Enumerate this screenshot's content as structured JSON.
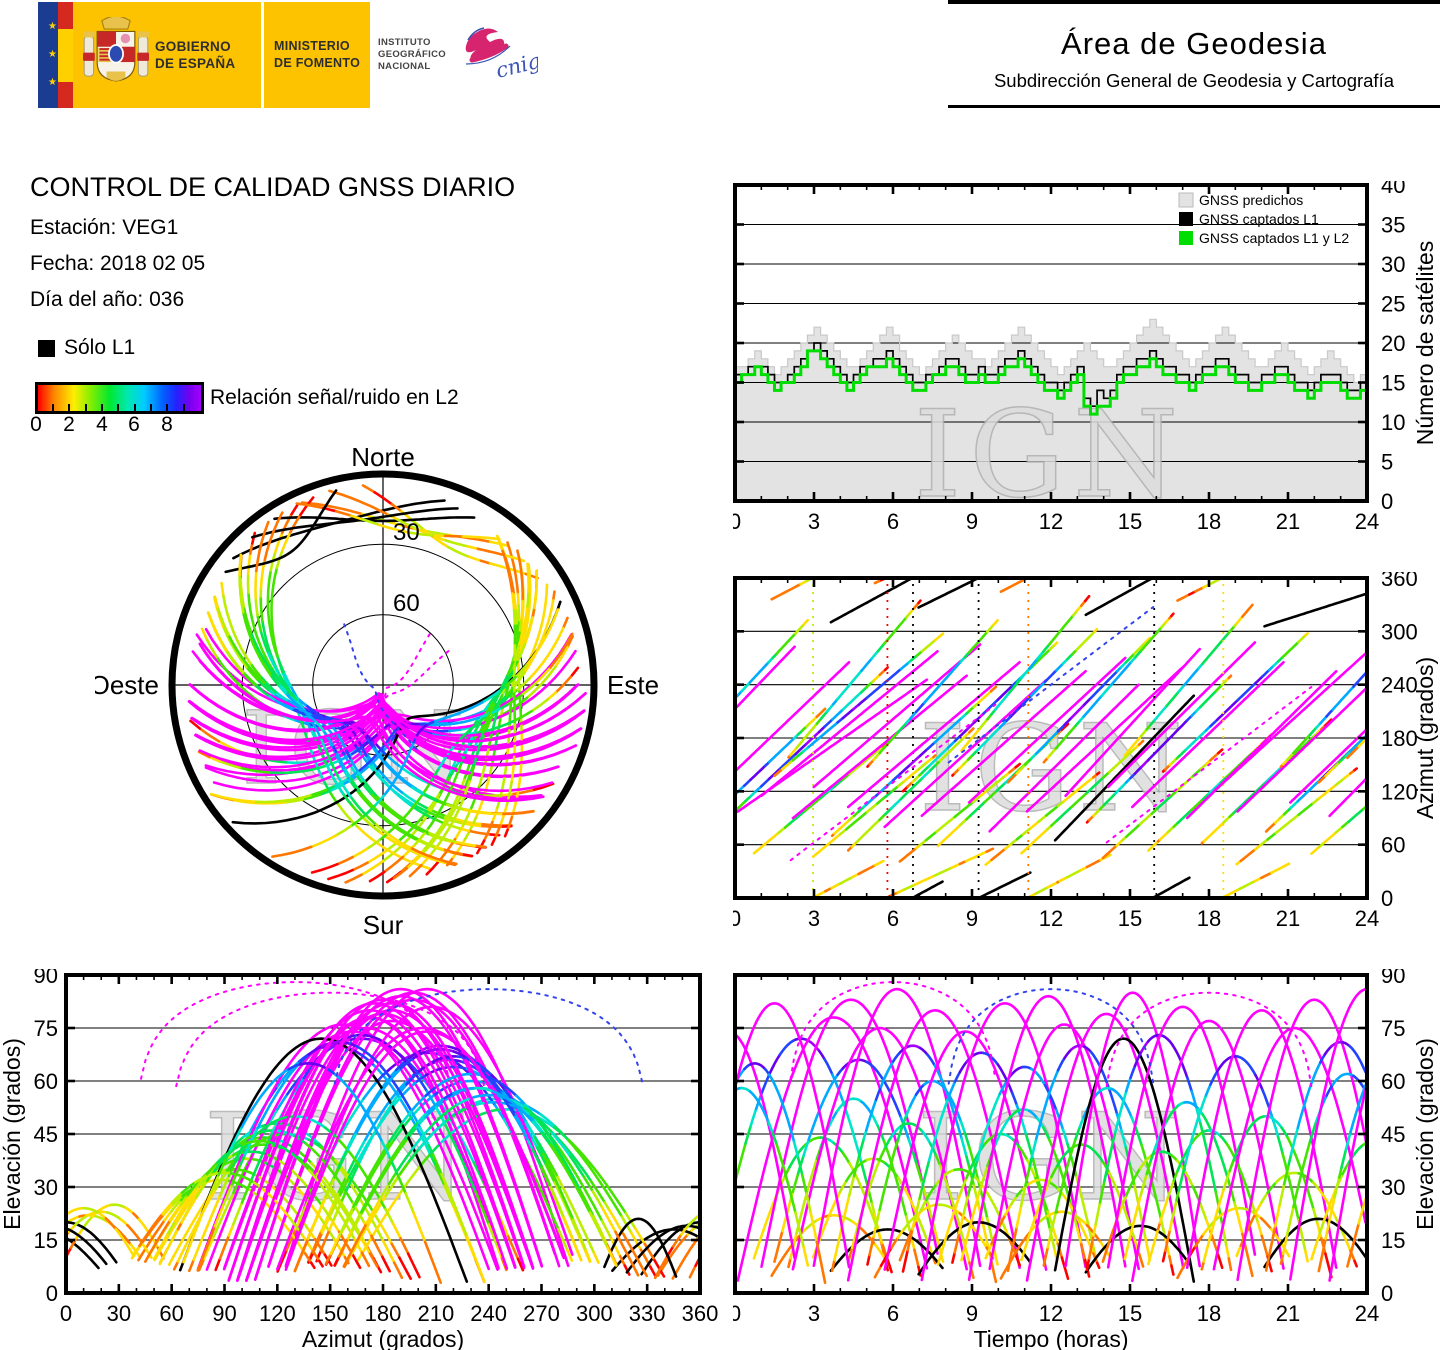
{
  "header": {
    "banner": {
      "gobierno": [
        "GOBIERNO",
        "DE ESPAÑA"
      ],
      "ministerio": [
        "MINISTERIO",
        "DE FOMENTO"
      ],
      "instituto": [
        "INSTITUTO",
        "GEOGRÁFICO",
        "NACIONAL"
      ],
      "cnig": "cnig"
    },
    "area_title": "Área de Geodesia",
    "area_subtitle": "Subdirección General de Geodesia y Cartografía"
  },
  "report": {
    "title": "CONTROL DE CALIDAD GNSS DIARIO",
    "station_label": "Estación:",
    "station_value": "VEG1",
    "date_label": "Fecha:",
    "date_value": "2018 02 05",
    "doy_label": "Día del año:",
    "doy_value": "036"
  },
  "snr_legend": {
    "solo_l1": "Sólo L1",
    "colorbar_label": "Relación señal/ruido en L2",
    "tick_labels": [
      "0",
      "2",
      "4",
      "6",
      "8"
    ]
  },
  "watermark": "IGN",
  "skyplot_labels": {
    "north": "Norte",
    "south": "Sur",
    "east": "Este",
    "west": "Oeste",
    "ring30": "30",
    "ring60": "60"
  },
  "chart_data": [
    {
      "id": "sat-count",
      "type": "area",
      "title": "",
      "xlabel": "",
      "ylabel": "Número de satélites",
      "xlim": [
        0,
        24
      ],
      "xmaj": 3,
      "xmin": 1,
      "ylim": [
        0,
        40
      ],
      "ymaj": 5,
      "grid": "horizontal",
      "legend_position": "top-right",
      "legend": [
        {
          "label": "GNSS predichos",
          "color": "#e3e3e3"
        },
        {
          "label": "GNSS captados L1",
          "color": "#000000"
        },
        {
          "label": "GNSS captados L1 y L2",
          "color": "#00dd00"
        }
      ],
      "x_start": 0,
      "x_step": 0.25,
      "series": [
        {
          "name": "GNSS predichos",
          "style": "step-fill",
          "color": "#e3e3e3",
          "values": [
            17,
            17,
            18,
            19,
            18,
            17,
            16,
            17,
            18,
            19,
            20,
            21,
            22,
            21,
            20,
            19,
            18,
            17,
            17,
            18,
            19,
            20,
            21,
            22,
            21,
            19,
            18,
            17,
            16,
            17,
            18,
            19,
            20,
            21,
            20,
            19,
            18,
            18,
            17,
            18,
            19,
            20,
            21,
            22,
            21,
            20,
            19,
            18,
            17,
            16,
            17,
            18,
            19,
            20,
            19,
            18,
            17,
            17,
            18,
            19,
            20,
            21,
            22,
            23,
            22,
            21,
            20,
            19,
            18,
            17,
            18,
            19,
            20,
            21,
            22,
            21,
            20,
            19,
            18,
            17,
            17,
            18,
            19,
            20,
            19,
            18,
            17,
            16,
            17,
            18,
            19,
            18,
            17,
            16,
            15,
            16,
            15
          ]
        },
        {
          "name": "GNSS captados L1",
          "style": "step-line",
          "color": "#000000",
          "values": [
            16,
            16,
            17,
            17,
            17,
            16,
            15,
            15,
            16,
            17,
            18,
            19,
            20,
            19,
            18,
            17,
            16,
            15,
            16,
            17,
            17,
            18,
            18,
            19,
            18,
            17,
            16,
            15,
            15,
            16,
            16,
            17,
            18,
            18,
            17,
            16,
            16,
            17,
            16,
            16,
            17,
            18,
            18,
            19,
            18,
            17,
            16,
            15,
            15,
            14,
            15,
            16,
            17,
            13,
            12,
            14,
            13,
            14,
            16,
            17,
            17,
            18,
            18,
            19,
            18,
            17,
            17,
            16,
            16,
            15,
            16,
            17,
            17,
            18,
            18,
            17,
            16,
            16,
            15,
            15,
            16,
            16,
            17,
            17,
            16,
            15,
            15,
            14,
            15,
            16,
            16,
            16,
            15,
            14,
            14,
            15,
            14
          ]
        },
        {
          "name": "GNSS captados L1 y L2",
          "style": "step-line-thick",
          "color": "#00dd00",
          "values": [
            15,
            16,
            16,
            17,
            16,
            15,
            14,
            15,
            15,
            16,
            17,
            19,
            19,
            18,
            17,
            16,
            15,
            14,
            15,
            16,
            17,
            17,
            17,
            18,
            17,
            16,
            15,
            14,
            14,
            15,
            16,
            16,
            17,
            17,
            16,
            15,
            15,
            16,
            15,
            15,
            16,
            17,
            17,
            18,
            17,
            16,
            15,
            14,
            14,
            13,
            14,
            15,
            16,
            12,
            11,
            12,
            12,
            13,
            15,
            16,
            16,
            17,
            17,
            18,
            17,
            16,
            16,
            15,
            15,
            14,
            15,
            16,
            16,
            17,
            17,
            16,
            15,
            15,
            14,
            14,
            15,
            15,
            16,
            16,
            15,
            14,
            14,
            13,
            14,
            15,
            15,
            15,
            14,
            13,
            13,
            14,
            13
          ]
        }
      ]
    },
    {
      "id": "skyplot",
      "type": "skyplot",
      "compass": [
        "Norte",
        "Este",
        "Sur",
        "Oeste"
      ],
      "elevation_rings": [
        30,
        60
      ],
      "snr_colormap": {
        "scale_range": [
          0,
          10
        ],
        "colors": [
          "#ff0000",
          "#ff7700",
          "#ffdd00",
          "#bbee00",
          "#44e400",
          "#00e455",
          "#00e4cc",
          "#00aaff",
          "#2244ff",
          "#6600ee",
          "#a400ff"
        ],
        "over": "#ff00ff",
        "l1_only": "#000000"
      },
      "passes_format": [
        "t_rise_h",
        "t_set_h",
        "az_rise_deg",
        "az_set_deg",
        "max_elevation_deg",
        "mode(0=snr,1=L1only-black,2=magenta,3=dotted)",
        "snr_gain"
      ],
      "passes": [
        [
          -1,
          6,
          70,
          265,
          72,
          0,
          1.15
        ],
        [
          0,
          7.5,
          95,
          250,
          78,
          2,
          1
        ],
        [
          0.3,
          6.2,
          40,
          185,
          44,
          0,
          1
        ],
        [
          0.8,
          8,
          110,
          285,
          83,
          2,
          1
        ],
        [
          1,
          6.5,
          330,
          415,
          22,
          0,
          0.9
        ],
        [
          1.2,
          8.2,
          130,
          305,
          66,
          0,
          1.2
        ],
        [
          1.8,
          7.2,
          150,
          340,
          55,
          0,
          1.05
        ],
        [
          2,
          9,
          85,
          255,
          75,
          2,
          1
        ],
        [
          2.5,
          8,
          35,
          170,
          38,
          0,
          0.95
        ],
        [
          2.8,
          9.5,
          120,
          290,
          86,
          2,
          1
        ],
        [
          3,
          8.6,
          300,
          390,
          18,
          1,
          1
        ],
        [
          3.5,
          10,
          65,
          240,
          70,
          0,
          1.15
        ],
        [
          4,
          9.2,
          45,
          195,
          48,
          0,
          1
        ],
        [
          4.2,
          11,
          100,
          270,
          80,
          2,
          1
        ],
        [
          4.8,
          10.2,
          140,
          320,
          60,
          0,
          1.1
        ],
        [
          5,
          10.5,
          350,
          425,
          25,
          0,
          0.9
        ],
        [
          5.5,
          12,
          75,
          250,
          74,
          2,
          1
        ],
        [
          5.8,
          11.2,
          30,
          160,
          35,
          0,
          0.95
        ],
        [
          6.2,
          12.5,
          115,
          295,
          68,
          0,
          1.2
        ],
        [
          6.5,
          12,
          320,
          400,
          20,
          1,
          1
        ],
        [
          7,
          13.5,
          90,
          260,
          82,
          2,
          1
        ],
        [
          7.4,
          12.8,
          50,
          200,
          45,
          0,
          1
        ],
        [
          8,
          14,
          130,
          310,
          64,
          0,
          1.15
        ],
        [
          8.3,
          13.6,
          155,
          345,
          52,
          0,
          1.05
        ],
        [
          8.8,
          15,
          105,
          275,
          84,
          2,
          1
        ],
        [
          9,
          14.2,
          25,
          150,
          32,
          0,
          0.9
        ],
        [
          9.5,
          15.5,
          70,
          245,
          76,
          2,
          1
        ],
        [
          9.8,
          15,
          340,
          420,
          23,
          0,
          0.9
        ],
        [
          10.2,
          16,
          125,
          300,
          70,
          0,
          1.2
        ],
        [
          10.5,
          15.8,
          40,
          185,
          42,
          0,
          1
        ],
        [
          11,
          17.2,
          95,
          265,
          79,
          2,
          1
        ],
        [
          11.5,
          16.8,
          145,
          325,
          58,
          0,
          1.1
        ],
        [
          12,
          17.5,
          60,
          230,
          72,
          1,
          1
        ],
        [
          12.4,
          17.8,
          110,
          285,
          85,
          2,
          1
        ],
        [
          12.8,
          18,
          310,
          395,
          19,
          1,
          1
        ],
        [
          13.2,
          19,
          80,
          255,
          73,
          0,
          1.15
        ],
        [
          13.6,
          18.8,
          35,
          175,
          40,
          0,
          0.95
        ],
        [
          14,
          20,
          120,
          295,
          81,
          2,
          1
        ],
        [
          14.5,
          19.8,
          150,
          335,
          54,
          0,
          1.05
        ],
        [
          15,
          21,
          100,
          270,
          77,
          2,
          1
        ],
        [
          15.4,
          20.6,
          45,
          190,
          46,
          0,
          1
        ],
        [
          16,
          22,
          135,
          305,
          67,
          0,
          1.2
        ],
        [
          16.5,
          21.8,
          330,
          410,
          24,
          0,
          0.9
        ],
        [
          17,
          23,
          85,
          260,
          80,
          2,
          1
        ],
        [
          17.5,
          22.8,
          55,
          205,
          50,
          0,
          1
        ],
        [
          18,
          24.5,
          115,
          290,
          75,
          2,
          1
        ],
        [
          18.5,
          24,
          25,
          155,
          34,
          0,
          0.9
        ],
        [
          19,
          25,
          95,
          265,
          83,
          2,
          1
        ],
        [
          19.5,
          24.8,
          300,
          350,
          21,
          1,
          1
        ],
        [
          20,
          26,
          70,
          240,
          71,
          0,
          1.15
        ],
        [
          20.5,
          26,
          140,
          320,
          62,
          0,
          1.1
        ],
        [
          21,
          27,
          105,
          275,
          86,
          2,
          1
        ],
        [
          21.5,
          27,
          40,
          180,
          43,
          0,
          1
        ],
        [
          22,
          28,
          125,
          300,
          69,
          0,
          1.2
        ],
        [
          22.5,
          28,
          90,
          255,
          78,
          2,
          1
        ],
        [
          23,
          29,
          150,
          330,
          56,
          0,
          1.05
        ],
        [
          -3,
          2.5,
          120,
          290,
          74,
          2,
          1
        ],
        [
          -2,
          3.5,
          60,
          215,
          65,
          0,
          1.15
        ],
        [
          -2.5,
          3,
          145,
          320,
          58,
          0,
          1.1
        ],
        [
          -1.5,
          4.5,
          100,
          270,
          82,
          2,
          1
        ],
        [
          2,
          10,
          40,
          220,
          88,
          3,
          1
        ],
        [
          8,
          16,
          150,
          330,
          86,
          3,
          1
        ],
        [
          14,
          22,
          60,
          240,
          85,
          3,
          1
        ]
      ]
    },
    {
      "id": "az-time",
      "type": "tracks",
      "x": "time",
      "y": "azimuth",
      "ylabel": "Azimut (grados)",
      "xlabel": "",
      "xlim": [
        0,
        24
      ],
      "xmaj": 3,
      "xmin": 1,
      "ylim": [
        0,
        360
      ],
      "ymaj": 60,
      "grid": "horizontal"
    },
    {
      "id": "el-az",
      "type": "tracks",
      "x": "azimuth",
      "y": "elevation",
      "ylabel": "Elevación (grados)",
      "xlabel": "Azimut (grados)",
      "xlim": [
        0,
        360
      ],
      "xmaj": 30,
      "xmin": 10,
      "ylim": [
        0,
        90
      ],
      "ymaj": 15,
      "grid": "horizontal"
    },
    {
      "id": "el-time",
      "type": "tracks",
      "x": "time",
      "y": "elevation",
      "ylabel": "Elevación (grados)",
      "xlabel": "Tiempo (horas)",
      "xlim": [
        0,
        24
      ],
      "xmaj": 3,
      "xmin": 1,
      "ylim": [
        0,
        90
      ],
      "ymaj": 15,
      "grid": "horizontal"
    }
  ]
}
